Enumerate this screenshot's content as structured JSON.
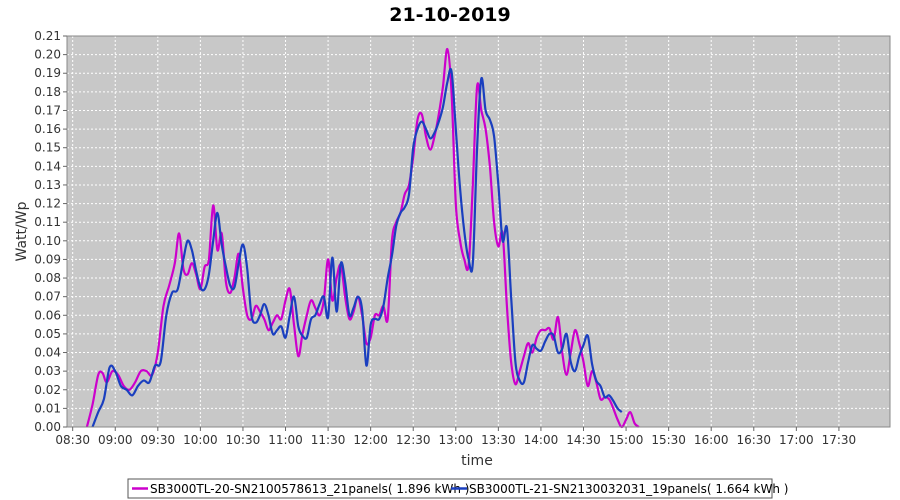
{
  "chart_data": {
    "type": "line",
    "title": "21-10-2019",
    "xlabel": "time",
    "ylabel": "Watt/Wp",
    "ylim": [
      0,
      0.21
    ],
    "xlim": [
      "08:26",
      "18:06"
    ],
    "x_ticks": [
      "08:30",
      "09:00",
      "09:30",
      "10:00",
      "10:30",
      "11:00",
      "11:30",
      "12:00",
      "12:30",
      "13:00",
      "13:30",
      "14:00",
      "14:30",
      "15:00",
      "15:30",
      "16:00",
      "16:30",
      "17:00",
      "17:30"
    ],
    "y_ticks": [
      0.0,
      0.01,
      0.02,
      0.03,
      0.04,
      0.05,
      0.06,
      0.07,
      0.08,
      0.09,
      0.1,
      0.11,
      0.12,
      0.13,
      0.14,
      0.15,
      0.16,
      0.17,
      0.18,
      0.19,
      0.2,
      0.21
    ],
    "grid": true,
    "legend_position": "bottom",
    "series": [
      {
        "name": "SB3000TL-20-SN2100578613_21panels( 1.896 kWh )",
        "color": "#cc00cc",
        "points": [
          [
            "08:40",
            0.0
          ],
          [
            "08:44",
            0.012
          ],
          [
            "08:48",
            0.028
          ],
          [
            "08:51",
            0.029
          ],
          [
            "08:54",
            0.024
          ],
          [
            "08:58",
            0.03
          ],
          [
            "09:02",
            0.028
          ],
          [
            "09:06",
            0.022
          ],
          [
            "09:10",
            0.02
          ],
          [
            "09:14",
            0.024
          ],
          [
            "09:18",
            0.03
          ],
          [
            "09:22",
            0.03
          ],
          [
            "09:26",
            0.028
          ],
          [
            "09:30",
            0.04
          ],
          [
            "09:34",
            0.065
          ],
          [
            "09:38",
            0.076
          ],
          [
            "09:42",
            0.088
          ],
          [
            "09:45",
            0.104
          ],
          [
            "09:48",
            0.085
          ],
          [
            "09:51",
            0.082
          ],
          [
            "09:54",
            0.088
          ],
          [
            "09:57",
            0.082
          ],
          [
            "10:00",
            0.074
          ],
          [
            "10:03",
            0.086
          ],
          [
            "10:06",
            0.09
          ],
          [
            "10:09",
            0.119
          ],
          [
            "10:12",
            0.095
          ],
          [
            "10:15",
            0.104
          ],
          [
            "10:18",
            0.078
          ],
          [
            "10:21",
            0.072
          ],
          [
            "10:24",
            0.08
          ],
          [
            "10:27",
            0.093
          ],
          [
            "10:30",
            0.074
          ],
          [
            "10:33",
            0.06
          ],
          [
            "10:36",
            0.058
          ],
          [
            "10:39",
            0.065
          ],
          [
            "10:42",
            0.062
          ],
          [
            "10:45",
            0.058
          ],
          [
            "10:48",
            0.052
          ],
          [
            "10:51",
            0.056
          ],
          [
            "10:54",
            0.06
          ],
          [
            "10:57",
            0.058
          ],
          [
            "11:00",
            0.068
          ],
          [
            "11:03",
            0.074
          ],
          [
            "11:06",
            0.055
          ],
          [
            "11:09",
            0.038
          ],
          [
            "11:12",
            0.05
          ],
          [
            "11:15",
            0.06
          ],
          [
            "11:18",
            0.068
          ],
          [
            "11:21",
            0.064
          ],
          [
            "11:24",
            0.06
          ],
          [
            "11:27",
            0.068
          ],
          [
            "11:30",
            0.09
          ],
          [
            "11:33",
            0.068
          ],
          [
            "11:36",
            0.08
          ],
          [
            "11:39",
            0.087
          ],
          [
            "11:42",
            0.07
          ],
          [
            "11:45",
            0.058
          ],
          [
            "11:48",
            0.062
          ],
          [
            "11:51",
            0.07
          ],
          [
            "11:54",
            0.06
          ],
          [
            "11:57",
            0.045
          ],
          [
            "12:00",
            0.048
          ],
          [
            "12:03",
            0.06
          ],
          [
            "12:06",
            0.06
          ],
          [
            "12:09",
            0.065
          ],
          [
            "12:12",
            0.058
          ],
          [
            "12:15",
            0.1
          ],
          [
            "12:18",
            0.11
          ],
          [
            "12:21",
            0.115
          ],
          [
            "12:24",
            0.125
          ],
          [
            "12:27",
            0.13
          ],
          [
            "12:30",
            0.145
          ],
          [
            "12:33",
            0.165
          ],
          [
            "12:36",
            0.168
          ],
          [
            "12:39",
            0.156
          ],
          [
            "12:42",
            0.149
          ],
          [
            "12:45",
            0.156
          ],
          [
            "12:48",
            0.168
          ],
          [
            "12:51",
            0.183
          ],
          [
            "12:54",
            0.203
          ],
          [
            "12:57",
            0.18
          ],
          [
            "13:00",
            0.12
          ],
          [
            "13:03",
            0.1
          ],
          [
            "13:06",
            0.09
          ],
          [
            "13:09",
            0.087
          ],
          [
            "13:12",
            0.13
          ],
          [
            "13:15",
            0.183
          ],
          [
            "13:18",
            0.17
          ],
          [
            "13:21",
            0.16
          ],
          [
            "13:24",
            0.14
          ],
          [
            "13:27",
            0.11
          ],
          [
            "13:30",
            0.097
          ],
          [
            "13:33",
            0.104
          ],
          [
            "13:36",
            0.065
          ],
          [
            "13:39",
            0.035
          ],
          [
            "13:42",
            0.023
          ],
          [
            "13:45",
            0.03
          ],
          [
            "13:48",
            0.038
          ],
          [
            "13:51",
            0.045
          ],
          [
            "13:54",
            0.04
          ],
          [
            "13:57",
            0.048
          ],
          [
            "14:00",
            0.052
          ],
          [
            "14:03",
            0.052
          ],
          [
            "14:06",
            0.053
          ],
          [
            "14:09",
            0.047
          ],
          [
            "14:12",
            0.059
          ],
          [
            "14:15",
            0.04
          ],
          [
            "14:18",
            0.028
          ],
          [
            "14:21",
            0.04
          ],
          [
            "14:24",
            0.052
          ],
          [
            "14:27",
            0.045
          ],
          [
            "14:30",
            0.035
          ],
          [
            "14:33",
            0.022
          ],
          [
            "14:36",
            0.03
          ],
          [
            "14:39",
            0.024
          ],
          [
            "14:42",
            0.015
          ],
          [
            "14:45",
            0.016
          ],
          [
            "14:48",
            0.015
          ],
          [
            "14:51",
            0.01
          ],
          [
            "14:54",
            0.004
          ],
          [
            "14:57",
            0.0
          ],
          [
            "15:00",
            0.004
          ],
          [
            "15:03",
            0.008
          ],
          [
            "15:06",
            0.002
          ],
          [
            "15:09",
            0.0
          ]
        ]
      },
      {
        "name": "SB3000TL-21-SN2130032031_19panels( 1.664 kWh )",
        "color": "#1a3fbf",
        "points": [
          [
            "08:44",
            0.0
          ],
          [
            "08:48",
            0.008
          ],
          [
            "08:52",
            0.015
          ],
          [
            "08:56",
            0.032
          ],
          [
            "09:00",
            0.03
          ],
          [
            "09:04",
            0.022
          ],
          [
            "09:08",
            0.02
          ],
          [
            "09:12",
            0.017
          ],
          [
            "09:16",
            0.022
          ],
          [
            "09:20",
            0.025
          ],
          [
            "09:24",
            0.024
          ],
          [
            "09:28",
            0.033
          ],
          [
            "09:32",
            0.035
          ],
          [
            "09:36",
            0.06
          ],
          [
            "09:40",
            0.072
          ],
          [
            "09:44",
            0.074
          ],
          [
            "09:48",
            0.09
          ],
          [
            "09:51",
            0.1
          ],
          [
            "09:54",
            0.095
          ],
          [
            "09:57",
            0.084
          ],
          [
            "10:00",
            0.075
          ],
          [
            "10:03",
            0.074
          ],
          [
            "10:06",
            0.082
          ],
          [
            "10:09",
            0.1
          ],
          [
            "10:12",
            0.115
          ],
          [
            "10:15",
            0.098
          ],
          [
            "10:18",
            0.086
          ],
          [
            "10:21",
            0.076
          ],
          [
            "10:24",
            0.075
          ],
          [
            "10:27",
            0.088
          ],
          [
            "10:30",
            0.098
          ],
          [
            "10:33",
            0.085
          ],
          [
            "10:36",
            0.06
          ],
          [
            "10:39",
            0.056
          ],
          [
            "10:42",
            0.06
          ],
          [
            "10:45",
            0.066
          ],
          [
            "10:48",
            0.06
          ],
          [
            "10:51",
            0.05
          ],
          [
            "10:54",
            0.052
          ],
          [
            "10:57",
            0.054
          ],
          [
            "11:00",
            0.048
          ],
          [
            "11:03",
            0.06
          ],
          [
            "11:06",
            0.07
          ],
          [
            "11:09",
            0.054
          ],
          [
            "11:12",
            0.049
          ],
          [
            "11:15",
            0.048
          ],
          [
            "11:18",
            0.058
          ],
          [
            "11:21",
            0.06
          ],
          [
            "11:24",
            0.066
          ],
          [
            "11:27",
            0.07
          ],
          [
            "11:30",
            0.059
          ],
          [
            "11:33",
            0.091
          ],
          [
            "11:36",
            0.062
          ],
          [
            "11:39",
            0.088
          ],
          [
            "11:42",
            0.078
          ],
          [
            "11:45",
            0.06
          ],
          [
            "11:48",
            0.064
          ],
          [
            "11:51",
            0.07
          ],
          [
            "11:54",
            0.063
          ],
          [
            "11:57",
            0.033
          ],
          [
            "12:00",
            0.055
          ],
          [
            "12:03",
            0.058
          ],
          [
            "12:06",
            0.058
          ],
          [
            "12:09",
            0.065
          ],
          [
            "12:12",
            0.08
          ],
          [
            "12:15",
            0.092
          ],
          [
            "12:18",
            0.108
          ],
          [
            "12:21",
            0.115
          ],
          [
            "12:24",
            0.118
          ],
          [
            "12:27",
            0.125
          ],
          [
            "12:30",
            0.15
          ],
          [
            "12:33",
            0.16
          ],
          [
            "12:36",
            0.164
          ],
          [
            "12:39",
            0.16
          ],
          [
            "12:42",
            0.155
          ],
          [
            "12:45",
            0.158
          ],
          [
            "12:48",
            0.164
          ],
          [
            "12:51",
            0.172
          ],
          [
            "12:54",
            0.185
          ],
          [
            "12:57",
            0.191
          ],
          [
            "13:00",
            0.16
          ],
          [
            "13:03",
            0.128
          ],
          [
            "13:06",
            0.105
          ],
          [
            "13:09",
            0.09
          ],
          [
            "13:12",
            0.088
          ],
          [
            "13:15",
            0.15
          ],
          [
            "13:18",
            0.187
          ],
          [
            "13:21",
            0.17
          ],
          [
            "13:24",
            0.165
          ],
          [
            "13:27",
            0.156
          ],
          [
            "13:30",
            0.13
          ],
          [
            "13:33",
            0.1
          ],
          [
            "13:36",
            0.107
          ],
          [
            "13:39",
            0.07
          ],
          [
            "13:42",
            0.035
          ],
          [
            "13:45",
            0.025
          ],
          [
            "13:48",
            0.024
          ],
          [
            "13:51",
            0.035
          ],
          [
            "13:54",
            0.044
          ],
          [
            "13:57",
            0.042
          ],
          [
            "14:00",
            0.041
          ],
          [
            "14:03",
            0.046
          ],
          [
            "14:06",
            0.05
          ],
          [
            "14:09",
            0.049
          ],
          [
            "14:12",
            0.04
          ],
          [
            "14:15",
            0.042
          ],
          [
            "14:18",
            0.05
          ],
          [
            "14:21",
            0.035
          ],
          [
            "14:24",
            0.03
          ],
          [
            "14:27",
            0.038
          ],
          [
            "14:30",
            0.044
          ],
          [
            "14:33",
            0.049
          ],
          [
            "14:36",
            0.034
          ],
          [
            "14:39",
            0.025
          ],
          [
            "14:42",
            0.022
          ],
          [
            "14:45",
            0.016
          ],
          [
            "14:48",
            0.017
          ],
          [
            "14:51",
            0.014
          ],
          [
            "14:54",
            0.01
          ],
          [
            "14:57",
            0.008
          ]
        ]
      }
    ]
  }
}
